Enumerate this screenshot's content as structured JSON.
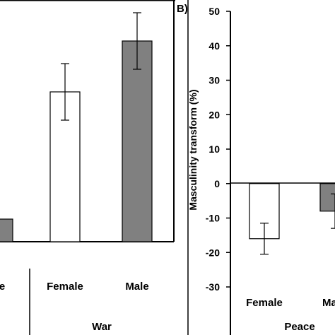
{
  "chart_data": [
    {
      "panel": "A",
      "type": "bar",
      "groups": [
        {
          "name": "e",
          "categories": [
            "e"
          ]
        },
        {
          "name": "War",
          "categories": [
            "Female",
            "Male"
          ]
        }
      ],
      "categories": [
        "Male",
        "Female",
        "Male"
      ],
      "series": [
        {
          "values": [
            8,
            53,
            71
          ]
        }
      ],
      "errors": [
        null,
        10,
        10
      ],
      "bar_colors": [
        "#808080",
        "#ffffff",
        "#808080"
      ],
      "visible_category_labels": [
        "e",
        "Female",
        "Male"
      ],
      "visible_group_labels": [
        "War"
      ]
    },
    {
      "panel": "B",
      "panel_label": "B)",
      "type": "bar",
      "groups": [
        {
          "name": "Peace",
          "categories": [
            "Female",
            "Male"
          ]
        }
      ],
      "categories": [
        "Female",
        "Male"
      ],
      "series": [
        {
          "values": [
            -16,
            -8
          ]
        }
      ],
      "errors": [
        4.5,
        5
      ],
      "bar_colors": [
        "#ffffff",
        "#808080"
      ],
      "ylabel": "Masculinity transform (%)",
      "ylim": [
        -30,
        50
      ],
      "yticks": [
        "50",
        "40",
        "30",
        "20",
        "10",
        "0",
        "-10",
        "-20",
        "-30"
      ],
      "visible_category_labels": [
        "Female",
        "Ma"
      ],
      "visible_group_labels": [
        "Peace"
      ]
    }
  ]
}
